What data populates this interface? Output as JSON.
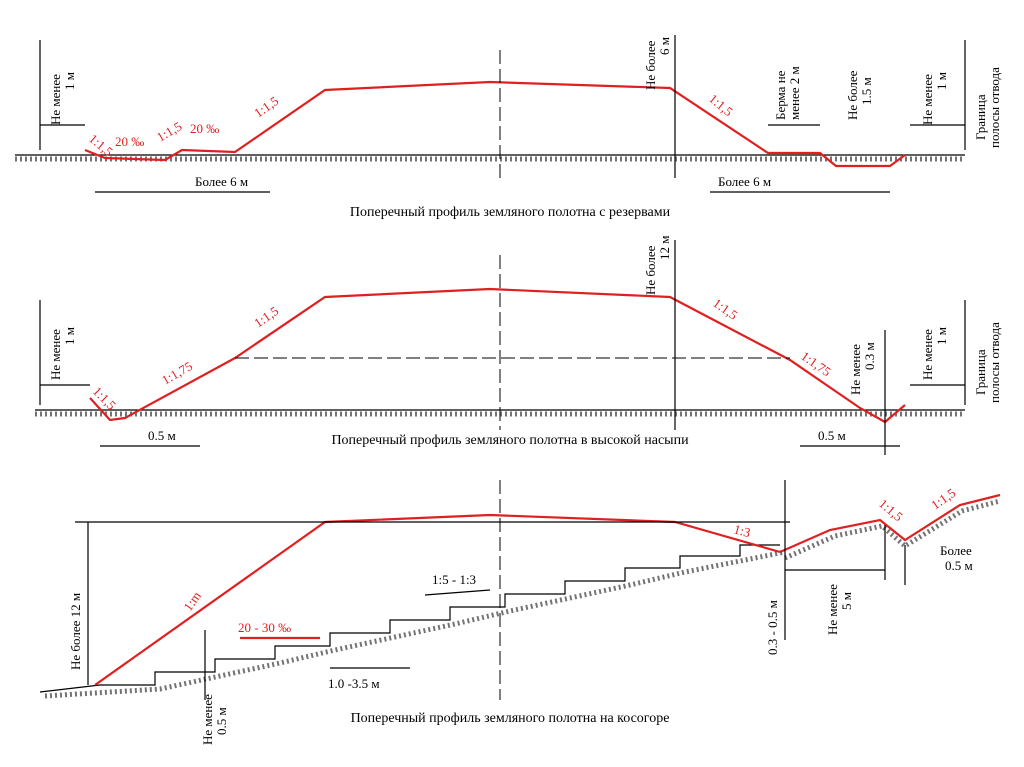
{
  "profiles": [
    {
      "caption": "Поперечный профиль земляного полотна с резервами",
      "texts": [
        [
          "Не менее",
          "1 м"
        ],
        "1:1,5",
        "20 ‰",
        "1:1,5",
        "20 ‰",
        "1:1,5",
        [
          "Не более",
          "6 м"
        ],
        "1:1,5",
        [
          "Берма не",
          "менее 2 м"
        ],
        [
          "Не более",
          "1.5 м"
        ],
        [
          "Не менее",
          "1 м"
        ],
        [
          "Граница",
          "полосы отвода"
        ],
        "Более 6 м",
        "Более 6 м"
      ]
    },
    {
      "caption": "Поперечный профиль земляного полотна в высокой насыпи",
      "texts": [
        [
          "Не более",
          "12 м"
        ],
        [
          "Не менее",
          "1 м"
        ],
        "1:1,5",
        "1:1,75",
        "1:1,5",
        "1:1,5",
        "1:1,75",
        [
          "Не менее",
          "0.3 м"
        ],
        [
          "Не менее",
          "1 м"
        ],
        [
          "Граница",
          "полосы отвода"
        ],
        "0.5 м",
        "0.5 м"
      ]
    },
    {
      "caption": "Поперечный профиль земляного полотна на косогоре",
      "texts": [
        "Не более 12 м",
        "1:m",
        "20 - 30 ‰",
        "1:5 - 1:3",
        "1.0 -3.5 м",
        [
          "Не менее",
          "0.5 м"
        ],
        "1:3",
        "0.3 - 0.5 м",
        [
          "Не менее",
          "5 м"
        ],
        "1:1,5",
        "1:1,5",
        [
          "Более",
          "0.5 м"
        ]
      ]
    }
  ]
}
